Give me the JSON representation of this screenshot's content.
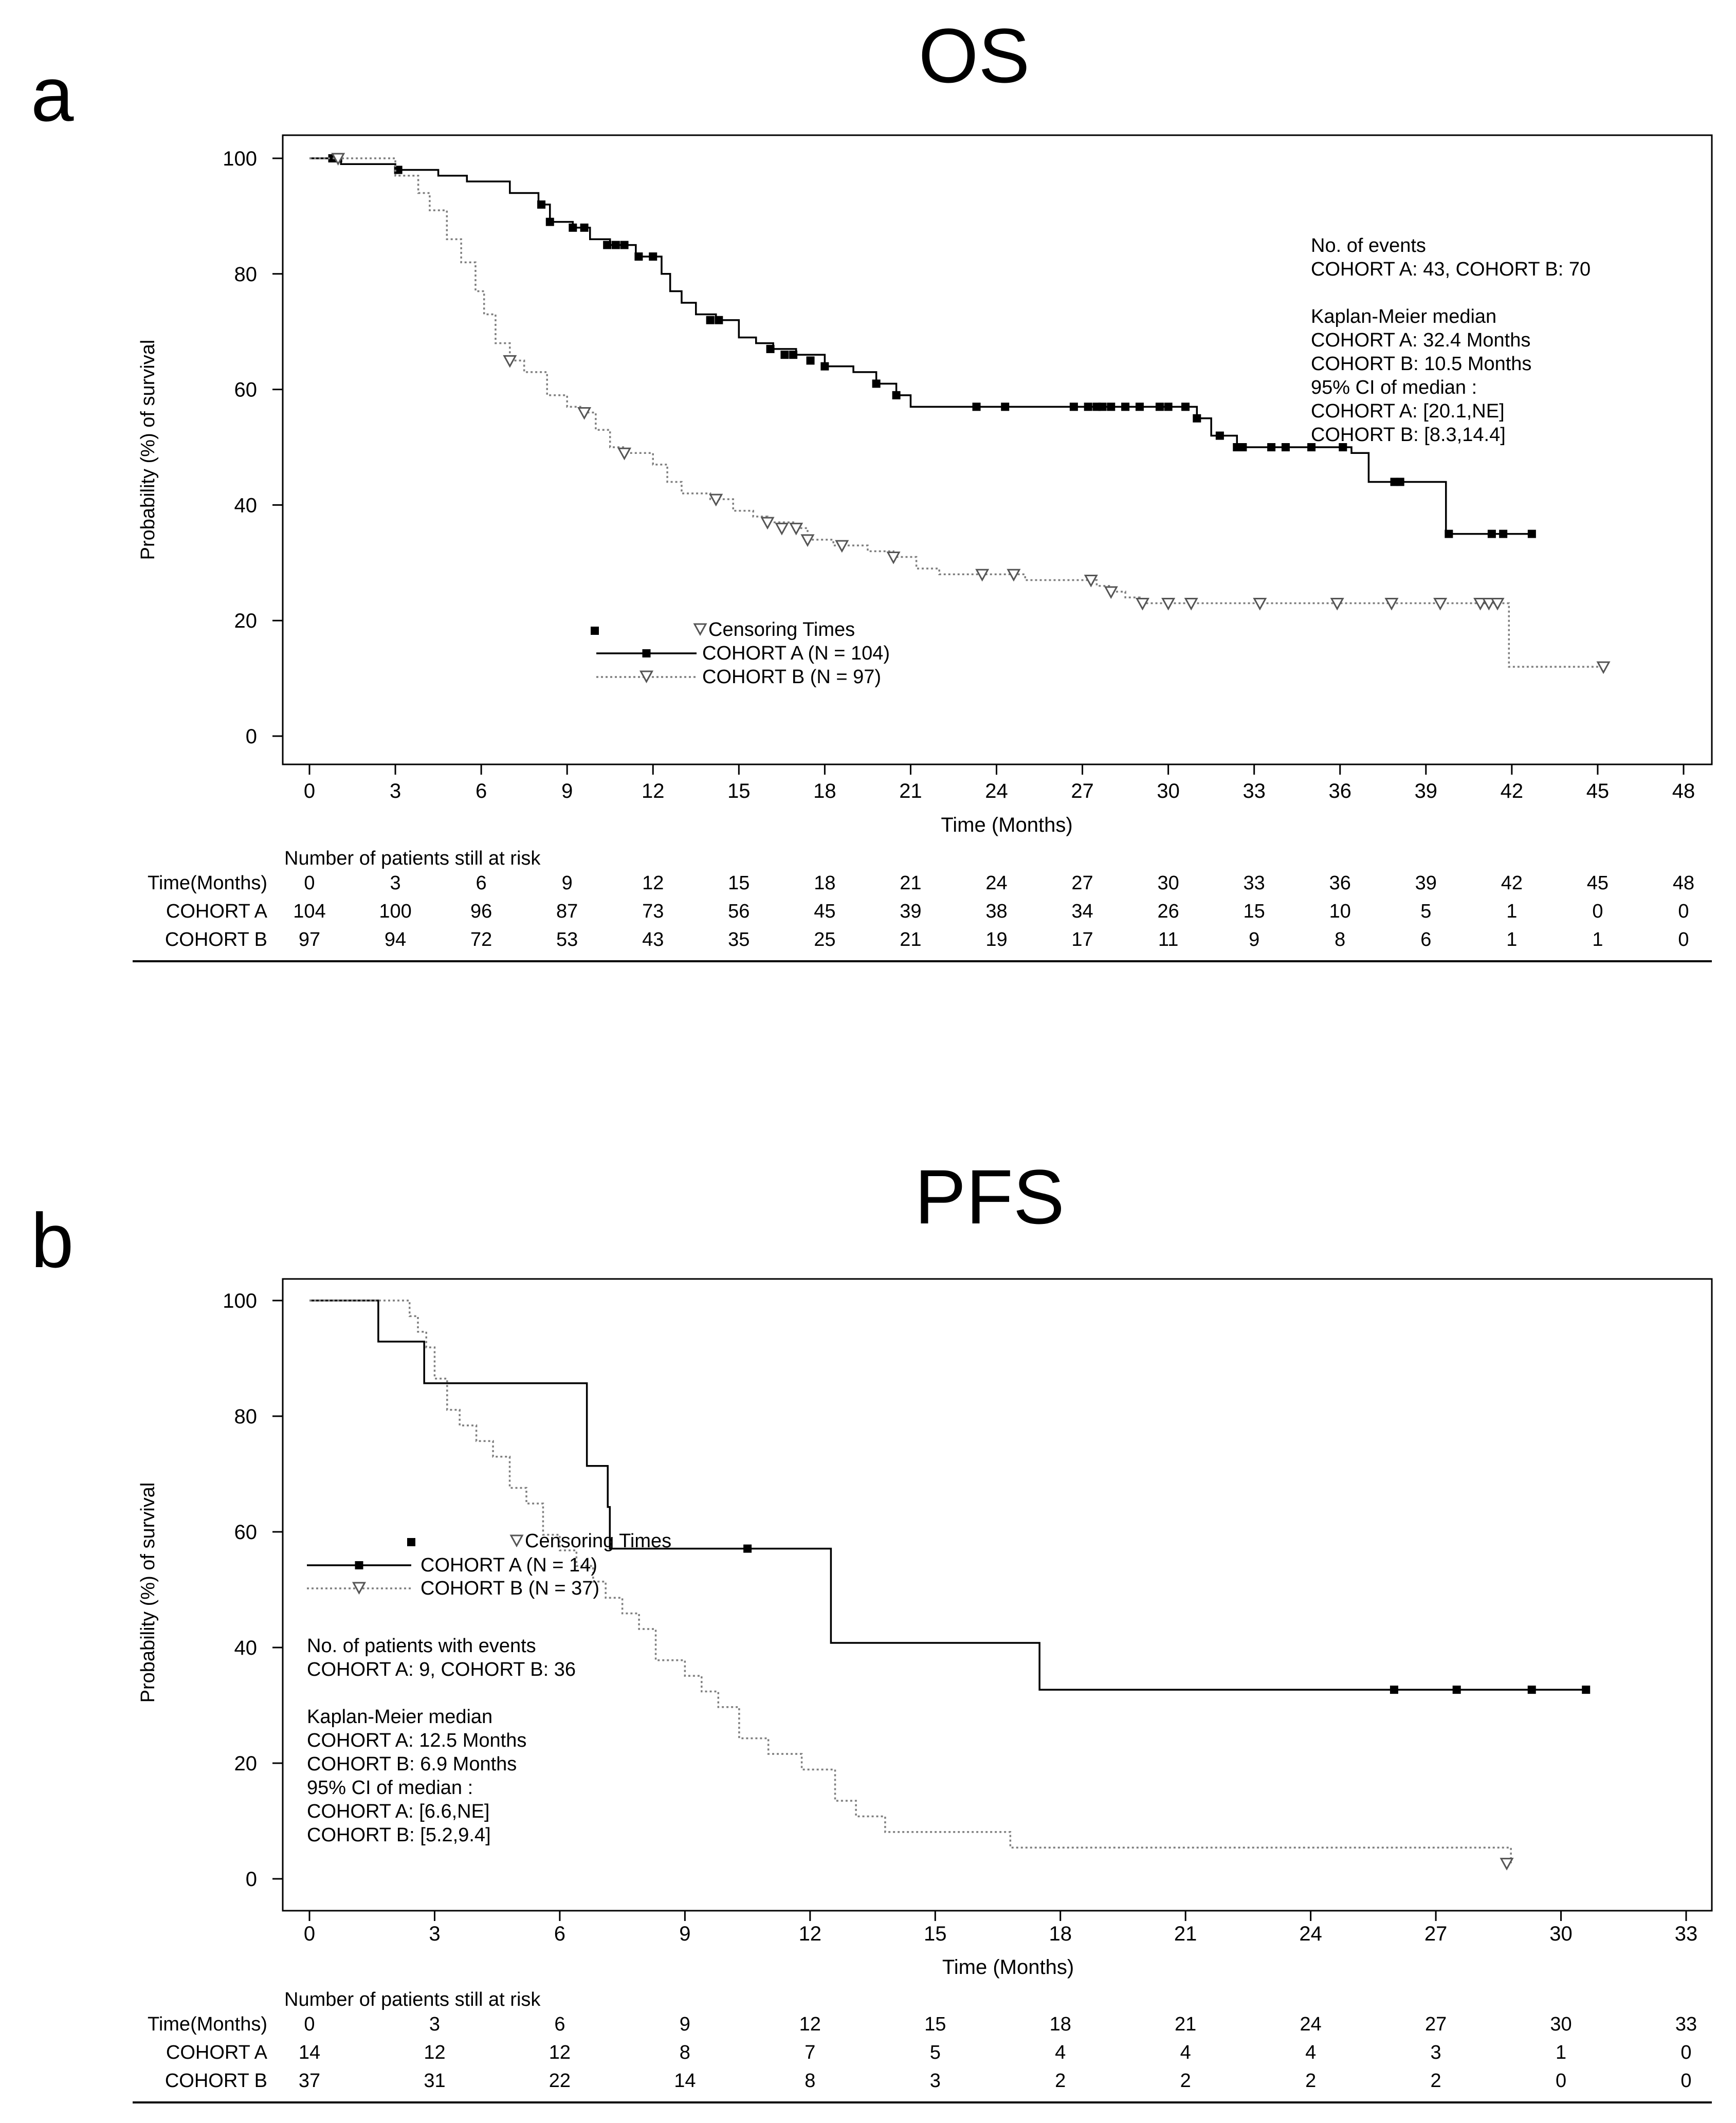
{
  "panels": [
    {
      "panel_label": "a",
      "title": "OS",
      "ylabel": "Probability (%) of survival",
      "xlabel": "Time (Months)",
      "legend": {
        "header": "Censoring Times",
        "entries": [
          "COHORT A (N = 104)",
          "COHORT B (N = 97)"
        ]
      },
      "annotation": [
        "No. of events",
        "COHORT A: 43, COHORT B: 70",
        "",
        "Kaplan-Meier median",
        "COHORT A: 32.4  Months",
        "COHORT B: 10.5  Months",
        "95% CI of median :",
        "COHORT A: [20.1,NE]",
        "COHORT B: [8.3,14.4]"
      ],
      "risk_table": {
        "title": "Number of patients still at risk",
        "header_label": "Time(Months)",
        "rows": [
          {
            "label": "COHORT A",
            "values": [
              "104",
              "100",
              "96",
              "87",
              "73",
              "56",
              "45",
              "39",
              "38",
              "34",
              "26",
              "15",
              "10",
              "5",
              "1",
              "0",
              "0"
            ]
          },
          {
            "label": "COHORT B",
            "values": [
              "97",
              "94",
              "72",
              "53",
              "43",
              "35",
              "25",
              "21",
              "19",
              "17",
              "11",
              "9",
              "8",
              "6",
              "1",
              "1",
              "0"
            ]
          }
        ]
      }
    },
    {
      "panel_label": "b",
      "title": "PFS",
      "ylabel": "Probability (%) of survival",
      "xlabel": "Time (Months)",
      "legend": {
        "header": "Censoring Times",
        "entries": [
          "COHORT A (N = 14)",
          "COHORT B (N = 37)"
        ]
      },
      "annotation": [
        "No. of patients with events",
        "COHORT A: 9, COHORT B: 36",
        "",
        "Kaplan-Meier median",
        "COHORT A: 12.5  Months",
        "COHORT B: 6.9  Months",
        "95% CI of median :",
        "COHORT A: [6.6,NE]",
        "COHORT B: [5.2,9.4]"
      ],
      "risk_table": {
        "title": "Number of patients still at risk",
        "header_label": "Time(Months)",
        "rows": [
          {
            "label": "COHORT A",
            "values": [
              "14",
              "12",
              "12",
              "8",
              "7",
              "5",
              "4",
              "4",
              "4",
              "3",
              "1",
              "0"
            ]
          },
          {
            "label": "COHORT B",
            "values": [
              "37",
              "31",
              "22",
              "14",
              "8",
              "3",
              "2",
              "2",
              "2",
              "2",
              "0",
              "0"
            ]
          }
        ]
      }
    }
  ],
  "chart_data": [
    {
      "type": "line",
      "subtype": "kaplan-meier",
      "title": "OS",
      "xlabel": "Time (Months)",
      "ylabel": "Probability (%) of survival",
      "xlim": [
        0,
        48
      ],
      "ylim": [
        0,
        100
      ],
      "xticks": [
        0,
        3,
        6,
        9,
        12,
        15,
        18,
        21,
        24,
        27,
        30,
        33,
        36,
        39,
        42,
        45,
        48
      ],
      "yticks": [
        0,
        20,
        40,
        60,
        80,
        100
      ],
      "legend_position": "center-left",
      "series": [
        {
          "name": "COHORT A (N = 104)",
          "style": "solid",
          "color": "#000000",
          "marker": "square",
          "steps": [
            [
              0,
              100
            ],
            [
              1.1,
              99
            ],
            [
              3.0,
              98
            ],
            [
              4.5,
              97
            ],
            [
              5.5,
              96
            ],
            [
              7.0,
              94
            ],
            [
              8.0,
              92
            ],
            [
              8.4,
              89
            ],
            [
              9.2,
              88
            ],
            [
              9.8,
              86
            ],
            [
              10.5,
              85
            ],
            [
              11.4,
              83
            ],
            [
              12.3,
              80
            ],
            [
              12.6,
              77
            ],
            [
              13.0,
              75
            ],
            [
              13.5,
              73
            ],
            [
              14.2,
              72
            ],
            [
              15.0,
              69
            ],
            [
              15.6,
              68
            ],
            [
              16.2,
              67
            ],
            [
              17.0,
              66
            ],
            [
              18.0,
              64
            ],
            [
              19.0,
              63
            ],
            [
              19.8,
              61
            ],
            [
              20.5,
              59
            ],
            [
              21.0,
              57
            ],
            [
              22.5,
              57
            ],
            [
              30.5,
              57
            ],
            [
              31.0,
              55
            ],
            [
              31.5,
              52
            ],
            [
              32.4,
              50
            ],
            [
              35.0,
              50
            ],
            [
              36.4,
              49
            ],
            [
              37.0,
              44
            ],
            [
              39.5,
              44
            ],
            [
              39.7,
              35
            ],
            [
              42.7,
              35
            ]
          ],
          "censored": [
            [
              0.8,
              100
            ],
            [
              1.0,
              100
            ],
            [
              3.1,
              98
            ],
            [
              8.1,
              92
            ],
            [
              8.4,
              89
            ],
            [
              9.2,
              88
            ],
            [
              9.6,
              88
            ],
            [
              10.4,
              85
            ],
            [
              10.7,
              85
            ],
            [
              11.0,
              85
            ],
            [
              11.5,
              83
            ],
            [
              12.0,
              83
            ],
            [
              14.0,
              72
            ],
            [
              14.3,
              72
            ],
            [
              16.1,
              67
            ],
            [
              16.6,
              66
            ],
            [
              16.9,
              66
            ],
            [
              17.5,
              65
            ],
            [
              18.0,
              64
            ],
            [
              19.8,
              61
            ],
            [
              20.5,
              59
            ],
            [
              23.3,
              57
            ],
            [
              24.3,
              57
            ],
            [
              26.7,
              57
            ],
            [
              27.2,
              57
            ],
            [
              27.5,
              57
            ],
            [
              27.7,
              57
            ],
            [
              28.0,
              57
            ],
            [
              28.5,
              57
            ],
            [
              29.0,
              57
            ],
            [
              29.7,
              57
            ],
            [
              30.0,
              57
            ],
            [
              30.6,
              57
            ],
            [
              31.0,
              55
            ],
            [
              31.8,
              52
            ],
            [
              32.4,
              50
            ],
            [
              32.6,
              50
            ],
            [
              33.6,
              50
            ],
            [
              34.1,
              50
            ],
            [
              35.0,
              50
            ],
            [
              36.1,
              50
            ],
            [
              37.9,
              44
            ],
            [
              38.1,
              44
            ],
            [
              39.8,
              35
            ],
            [
              41.3,
              35
            ],
            [
              41.7,
              35
            ],
            [
              42.7,
              35
            ]
          ]
        },
        {
          "name": "COHORT B (N = 97)",
          "style": "dotted",
          "color": "#7f7f7f",
          "marker": "triangle-down",
          "steps": [
            [
              0,
              100
            ],
            [
              2.5,
              100
            ],
            [
              3.0,
              97
            ],
            [
              3.8,
              94
            ],
            [
              4.2,
              91
            ],
            [
              4.8,
              86
            ],
            [
              5.3,
              82
            ],
            [
              5.8,
              77
            ],
            [
              6.1,
              73
            ],
            [
              6.5,
              68
            ],
            [
              7.0,
              65
            ],
            [
              7.5,
              63
            ],
            [
              8.3,
              59
            ],
            [
              9.0,
              57
            ],
            [
              9.5,
              56
            ],
            [
              10.0,
              53
            ],
            [
              10.5,
              50
            ],
            [
              11.0,
              49
            ],
            [
              12.0,
              47
            ],
            [
              12.5,
              44
            ],
            [
              13.0,
              42
            ],
            [
              14.0,
              41
            ],
            [
              14.8,
              39
            ],
            [
              15.5,
              38
            ],
            [
              16.0,
              37
            ],
            [
              17.0,
              36
            ],
            [
              17.4,
              34
            ],
            [
              18.3,
              33
            ],
            [
              19.5,
              32
            ],
            [
              20.4,
              31
            ],
            [
              21.2,
              29
            ],
            [
              22.0,
              28
            ],
            [
              23.5,
              28
            ],
            [
              25.0,
              27
            ],
            [
              27.5,
              26
            ],
            [
              28.0,
              25
            ],
            [
              28.5,
              24
            ],
            [
              29.0,
              23
            ],
            [
              41.8,
              23
            ],
            [
              41.9,
              12
            ],
            [
              45.2,
              12
            ]
          ],
          "censored": [
            [
              1.0,
              100
            ],
            [
              7.0,
              65
            ],
            [
              9.6,
              56
            ],
            [
              11.0,
              49
            ],
            [
              14.2,
              41
            ],
            [
              16.0,
              37
            ],
            [
              16.5,
              36
            ],
            [
              17.0,
              36
            ],
            [
              17.4,
              34
            ],
            [
              18.6,
              33
            ],
            [
              20.4,
              31
            ],
            [
              23.5,
              28
            ],
            [
              24.6,
              28
            ],
            [
              27.3,
              27
            ],
            [
              28.0,
              25
            ],
            [
              29.1,
              23
            ],
            [
              30.0,
              23
            ],
            [
              30.8,
              23
            ],
            [
              33.2,
              23
            ],
            [
              35.9,
              23
            ],
            [
              37.8,
              23
            ],
            [
              39.5,
              23
            ],
            [
              40.9,
              23
            ],
            [
              41.2,
              23
            ],
            [
              41.5,
              23
            ],
            [
              45.2,
              12
            ]
          ]
        }
      ]
    },
    {
      "type": "line",
      "subtype": "kaplan-meier",
      "title": "PFS",
      "xlabel": "Time (Months)",
      "ylabel": "Probability (%) of survival",
      "xlim": [
        0,
        33
      ],
      "ylim": [
        0,
        100
      ],
      "xticks": [
        0,
        3,
        6,
        9,
        12,
        15,
        18,
        21,
        24,
        27,
        30,
        33
      ],
      "yticks": [
        0,
        20,
        40,
        60,
        80,
        100
      ],
      "legend_position": "center-left",
      "series": [
        {
          "name": "COHORT A (N = 14)",
          "style": "solid",
          "color": "#000000",
          "marker": "square",
          "steps": [
            [
              0,
              100
            ],
            [
              1.6,
              100
            ],
            [
              1.65,
              92.9
            ],
            [
              2.7,
              92.9
            ],
            [
              2.75,
              85.7
            ],
            [
              6.6,
              85.7
            ],
            [
              6.65,
              71.4
            ],
            [
              7.1,
              71.4
            ],
            [
              7.15,
              64.3
            ],
            [
              7.2,
              57.1
            ],
            [
              12.4,
              57.1
            ],
            [
              12.5,
              40.8
            ],
            [
              17.4,
              40.8
            ],
            [
              17.5,
              32.7
            ],
            [
              30.6,
              32.7
            ]
          ],
          "censored": [
            [
              10.5,
              57.1
            ],
            [
              26.0,
              32.7
            ],
            [
              27.5,
              32.7
            ],
            [
              29.3,
              32.7
            ],
            [
              30.6,
              32.7
            ]
          ]
        },
        {
          "name": "COHORT B (N = 37)",
          "style": "dotted",
          "color": "#7f7f7f",
          "marker": "triangle-down",
          "steps": [
            [
              0,
              100
            ],
            [
              2.2,
              100
            ],
            [
              2.4,
              97.3
            ],
            [
              2.6,
              94.6
            ],
            [
              2.8,
              91.9
            ],
            [
              3.0,
              86.5
            ],
            [
              3.3,
              81.1
            ],
            [
              3.6,
              78.4
            ],
            [
              4.0,
              75.7
            ],
            [
              4.4,
              73.0
            ],
            [
              4.8,
              67.6
            ],
            [
              5.2,
              64.9
            ],
            [
              5.6,
              59.5
            ],
            [
              6.0,
              56.8
            ],
            [
              6.4,
              54.1
            ],
            [
              6.8,
              51.4
            ],
            [
              7.1,
              48.6
            ],
            [
              7.5,
              45.9
            ],
            [
              7.9,
              43.2
            ],
            [
              8.3,
              37.8
            ],
            [
              9.0,
              35.1
            ],
            [
              9.4,
              32.4
            ],
            [
              9.8,
              29.7
            ],
            [
              10.3,
              24.3
            ],
            [
              11.0,
              21.6
            ],
            [
              11.8,
              18.9
            ],
            [
              12.6,
              13.5
            ],
            [
              13.1,
              10.8
            ],
            [
              13.8,
              8.1
            ],
            [
              16.8,
              5.4
            ],
            [
              28.7,
              5.4
            ],
            [
              28.8,
              2.7
            ]
          ],
          "censored": [
            [
              28.7,
              2.7
            ]
          ]
        }
      ]
    }
  ]
}
